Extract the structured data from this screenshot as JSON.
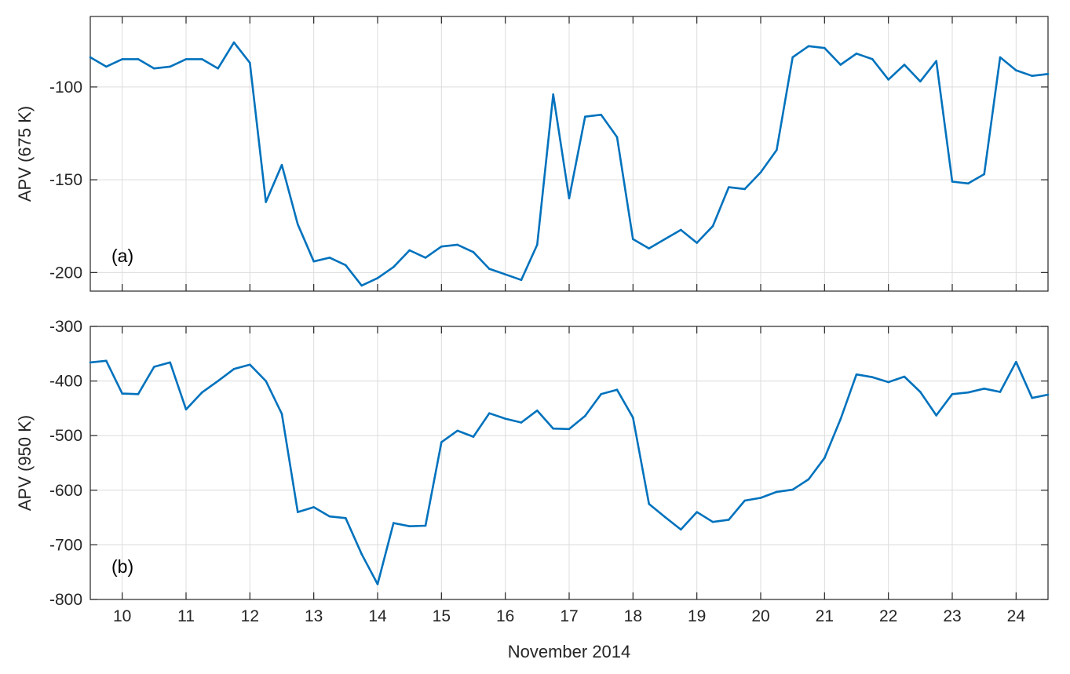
{
  "chart_data": [
    {
      "type": "line",
      "panel_label": "(a)",
      "xlabel": "",
      "ylabel": "APV (675 K)",
      "xlim": [
        9.5,
        24.5
      ],
      "ylim": [
        -210,
        -62
      ],
      "yticks": [
        -200,
        -150,
        -100
      ],
      "xticks": [
        10,
        11,
        12,
        13,
        14,
        15,
        16,
        17,
        18,
        19,
        20,
        21,
        22,
        23,
        24
      ],
      "xtick_labels": [],
      "grid": true,
      "color": "#0072BD",
      "series": [
        {
          "x": [
            9.5,
            9.75,
            10,
            10.25,
            10.5,
            10.75,
            11,
            11.25,
            11.5,
            11.75,
            12,
            12.25,
            12.5,
            12.75,
            13,
            13.25,
            13.5,
            13.75,
            14,
            14.25,
            14.5,
            14.75,
            15,
            15.25,
            15.5,
            15.75,
            16,
            16.25,
            16.5,
            16.75,
            17,
            17.25,
            17.5,
            17.75,
            18,
            18.25,
            18.5,
            18.75,
            19,
            19.25,
            19.5,
            19.75,
            20,
            20.25,
            20.5,
            20.75,
            21,
            21.25,
            21.5,
            21.75,
            22,
            22.25,
            22.5,
            22.75,
            23,
            23.25,
            23.5,
            23.75,
            24,
            24.25,
            24.5
          ],
          "values": [
            -84,
            -89,
            -85,
            -85,
            -90,
            -89,
            -85,
            -85,
            -90,
            -76,
            -87,
            -162,
            -142,
            -174,
            -194,
            -192,
            -196,
            -207,
            -203,
            -197,
            -188,
            -192,
            -186,
            -185,
            -189,
            -198,
            -201,
            -204,
            -185,
            -104,
            -160,
            -116,
            -115,
            -127,
            -182,
            -187,
            -182,
            -177,
            -184,
            -175,
            -154,
            -155,
            -146,
            -134,
            -84,
            -78,
            -79,
            -88,
            -82,
            -85,
            -96,
            -88,
            -97,
            -86,
            -151,
            -152,
            -147,
            -84,
            -91,
            -94,
            -93
          ]
        }
      ]
    },
    {
      "type": "line",
      "panel_label": "(b)",
      "xlabel": "November 2014",
      "ylabel": "APV (950 K)",
      "xlim": [
        9.5,
        24.5
      ],
      "ylim": [
        -800,
        -300
      ],
      "yticks": [
        -800,
        -700,
        -600,
        -500,
        -400,
        -300
      ],
      "xticks": [
        10,
        11,
        12,
        13,
        14,
        15,
        16,
        17,
        18,
        19,
        20,
        21,
        22,
        23,
        24
      ],
      "xtick_labels": [
        "10",
        "11",
        "12",
        "13",
        "14",
        "15",
        "16",
        "17",
        "18",
        "19",
        "20",
        "21",
        "22",
        "23",
        "24"
      ],
      "grid": true,
      "color": "#0072BD",
      "series": [
        {
          "x": [
            9.5,
            9.75,
            10,
            10.25,
            10.5,
            10.75,
            11,
            11.25,
            11.5,
            11.75,
            12,
            12.25,
            12.5,
            12.75,
            13,
            13.25,
            13.5,
            13.75,
            14,
            14.25,
            14.5,
            14.75,
            15,
            15.25,
            15.5,
            15.75,
            16,
            16.25,
            16.5,
            16.75,
            17,
            17.25,
            17.5,
            17.75,
            18,
            18.25,
            18.5,
            18.75,
            19,
            19.25,
            19.5,
            19.75,
            20,
            20.25,
            20.5,
            20.75,
            21,
            21.25,
            21.5,
            21.75,
            22,
            22.25,
            22.5,
            22.75,
            23,
            23.25,
            23.5,
            23.75,
            24,
            24.25,
            24.5
          ],
          "values": [
            -366,
            -363,
            -423,
            -424,
            -374,
            -366,
            -452,
            -421,
            -400,
            -378,
            -370,
            -400,
            -460,
            -640,
            -631,
            -648,
            -651,
            -717,
            -772,
            -660,
            -666,
            -665,
            -512,
            -491,
            -502,
            -459,
            -469,
            -476,
            -454,
            -487,
            -488,
            -464,
            -424,
            -416,
            -467,
            -625,
            -649,
            -672,
            -640,
            -658,
            -654,
            -619,
            -614,
            -603,
            -599,
            -580,
            -541,
            -470,
            -388,
            -393,
            -402,
            -392,
            -420,
            -463,
            -424,
            -421,
            -414,
            -420,
            -365,
            -431,
            -425
          ]
        }
      ]
    }
  ]
}
